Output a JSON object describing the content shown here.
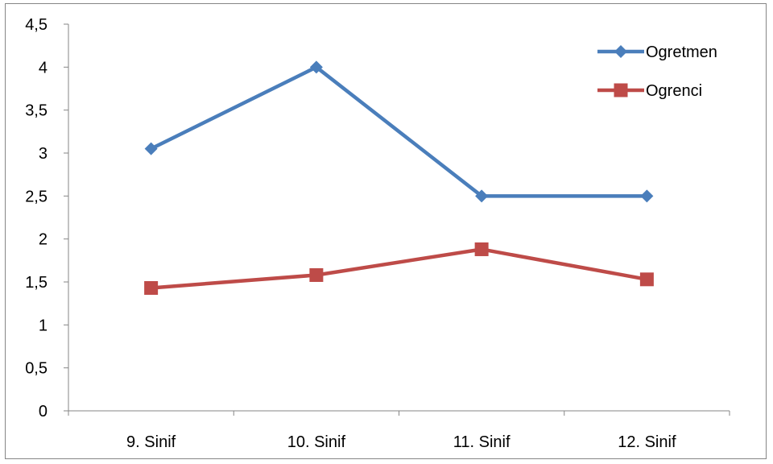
{
  "chart_data": {
    "type": "line",
    "categories": [
      "9. Sinif",
      "10. Sinif",
      "11. Sinif",
      "12. Sinif"
    ],
    "series": [
      {
        "name": "Ogretmen",
        "values": [
          3.05,
          4.0,
          2.5,
          2.5
        ],
        "color": "#4a7ebb",
        "marker": "diamond"
      },
      {
        "name": "Ogrenci",
        "values": [
          1.43,
          1.58,
          1.88,
          1.53
        ],
        "color": "#be4b48",
        "marker": "square"
      }
    ],
    "ylim": [
      0,
      4.5
    ],
    "yticks": [
      "0",
      "0,5",
      "1",
      "1,5",
      "2",
      "2,5",
      "3",
      "3,5",
      "4",
      "4,5"
    ],
    "grid": false,
    "legend_position": "top-right"
  }
}
